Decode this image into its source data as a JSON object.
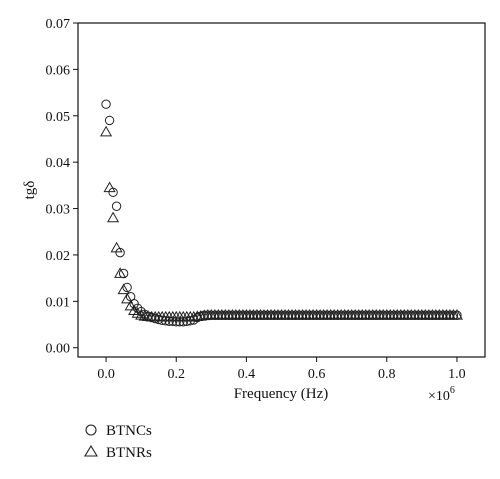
{
  "chart_data": {
    "type": "scatter",
    "title": "",
    "xlabel": "Frequency (Hz)",
    "ylabel": "tgδ",
    "x_multiplier": "×10",
    "x_multiplier_exp": "6",
    "xlim": [
      -0.08,
      1.08
    ],
    "ylim": [
      -0.002,
      0.07
    ],
    "xticks": [
      0.0,
      0.2,
      0.4,
      0.6,
      0.8,
      1.0
    ],
    "xtick_labels": [
      "0.0",
      "0.2",
      "0.4",
      "0.6",
      "0.8",
      "1.0"
    ],
    "yticks": [
      0.0,
      0.01,
      0.02,
      0.03,
      0.04,
      0.05,
      0.06,
      0.07
    ],
    "ytick_labels": [
      "0.00",
      "0.01",
      "0.02",
      "0.03",
      "0.04",
      "0.05",
      "0.06",
      "0.07"
    ],
    "grid": false,
    "legend_position": "bottom-left-outside",
    "series": [
      {
        "name": "BTNCs",
        "marker": "circle",
        "x": [
          0.0,
          0.01,
          0.02,
          0.03,
          0.04,
          0.05,
          0.06,
          0.07,
          0.08,
          0.09,
          0.1,
          0.11,
          0.12,
          0.13,
          0.14,
          0.15,
          0.16,
          0.17,
          0.18,
          0.19,
          0.2,
          0.21,
          0.22,
          0.23,
          0.24,
          0.25,
          0.26,
          0.27,
          0.28,
          0.29,
          0.3,
          0.31,
          0.32,
          0.33,
          0.34,
          0.35,
          0.36,
          0.37,
          0.38,
          0.39,
          0.4,
          0.41,
          0.42,
          0.43,
          0.44,
          0.45,
          0.46,
          0.47,
          0.48,
          0.49,
          0.5,
          0.51,
          0.52,
          0.53,
          0.54,
          0.55,
          0.56,
          0.57,
          0.58,
          0.59,
          0.6,
          0.61,
          0.62,
          0.63,
          0.64,
          0.65,
          0.66,
          0.67,
          0.68,
          0.69,
          0.7,
          0.71,
          0.72,
          0.73,
          0.74,
          0.75,
          0.76,
          0.77,
          0.78,
          0.79,
          0.8,
          0.81,
          0.82,
          0.83,
          0.84,
          0.85,
          0.86,
          0.87,
          0.88,
          0.89,
          0.9,
          0.91,
          0.92,
          0.93,
          0.94,
          0.95,
          0.96,
          0.97,
          0.98,
          0.99,
          1.0
        ],
        "y": [
          0.0525,
          0.049,
          0.0335,
          0.0305,
          0.0205,
          0.016,
          0.013,
          0.011,
          0.0095,
          0.0085,
          0.0078,
          0.0072,
          0.0068,
          0.0065,
          0.0063,
          0.0061,
          0.0059,
          0.0058,
          0.0057,
          0.0057,
          0.0056,
          0.0056,
          0.0056,
          0.0057,
          0.0058,
          0.006,
          0.0065,
          0.0068,
          0.007,
          0.007,
          0.007,
          0.007,
          0.007,
          0.007,
          0.007,
          0.007,
          0.007,
          0.007,
          0.007,
          0.007,
          0.007,
          0.007,
          0.007,
          0.007,
          0.007,
          0.007,
          0.007,
          0.007,
          0.007,
          0.007,
          0.007,
          0.007,
          0.007,
          0.007,
          0.007,
          0.007,
          0.007,
          0.007,
          0.007,
          0.007,
          0.007,
          0.007,
          0.007,
          0.007,
          0.007,
          0.007,
          0.007,
          0.007,
          0.007,
          0.007,
          0.007,
          0.007,
          0.007,
          0.007,
          0.007,
          0.007,
          0.007,
          0.007,
          0.007,
          0.007,
          0.007,
          0.007,
          0.007,
          0.007,
          0.007,
          0.007,
          0.007,
          0.007,
          0.007,
          0.007,
          0.007,
          0.007,
          0.007,
          0.007,
          0.007,
          0.007,
          0.007,
          0.007,
          0.007,
          0.007,
          0.007
        ]
      },
      {
        "name": "BTNRs",
        "marker": "triangle",
        "x": [
          0.0,
          0.01,
          0.02,
          0.03,
          0.04,
          0.05,
          0.06,
          0.07,
          0.08,
          0.09,
          0.1,
          0.11,
          0.12,
          0.13,
          0.14,
          0.15,
          0.16,
          0.17,
          0.18,
          0.19,
          0.2,
          0.21,
          0.22,
          0.23,
          0.24,
          0.25,
          0.26,
          0.27,
          0.28,
          0.29,
          0.3,
          0.31,
          0.32,
          0.33,
          0.34,
          0.35,
          0.36,
          0.37,
          0.38,
          0.39,
          0.4,
          0.41,
          0.42,
          0.43,
          0.44,
          0.45,
          0.46,
          0.47,
          0.48,
          0.49,
          0.5,
          0.51,
          0.52,
          0.53,
          0.54,
          0.55,
          0.56,
          0.57,
          0.58,
          0.59,
          0.6,
          0.61,
          0.62,
          0.63,
          0.64,
          0.65,
          0.66,
          0.67,
          0.68,
          0.69,
          0.7,
          0.71,
          0.72,
          0.73,
          0.74,
          0.75,
          0.76,
          0.77,
          0.78,
          0.79,
          0.8,
          0.81,
          0.82,
          0.83,
          0.84,
          0.85,
          0.86,
          0.87,
          0.88,
          0.89,
          0.9,
          0.91,
          0.92,
          0.93,
          0.94,
          0.95,
          0.96,
          0.97,
          0.98,
          0.99,
          1.0
        ],
        "y": [
          0.0465,
          0.0345,
          0.028,
          0.0215,
          0.016,
          0.0125,
          0.0105,
          0.009,
          0.008,
          0.0074,
          0.007,
          0.0068,
          0.0067,
          0.0066,
          0.0066,
          0.0066,
          0.0066,
          0.0066,
          0.0066,
          0.0066,
          0.0066,
          0.0066,
          0.0066,
          0.0066,
          0.0066,
          0.0066,
          0.0067,
          0.0068,
          0.0069,
          0.007,
          0.007,
          0.007,
          0.007,
          0.007,
          0.007,
          0.007,
          0.007,
          0.007,
          0.007,
          0.007,
          0.007,
          0.007,
          0.007,
          0.007,
          0.007,
          0.007,
          0.007,
          0.007,
          0.007,
          0.007,
          0.007,
          0.007,
          0.007,
          0.007,
          0.007,
          0.007,
          0.007,
          0.007,
          0.007,
          0.007,
          0.007,
          0.007,
          0.007,
          0.007,
          0.007,
          0.007,
          0.007,
          0.007,
          0.007,
          0.007,
          0.007,
          0.007,
          0.007,
          0.007,
          0.007,
          0.007,
          0.007,
          0.007,
          0.007,
          0.007,
          0.007,
          0.007,
          0.007,
          0.007,
          0.007,
          0.007,
          0.007,
          0.007,
          0.007,
          0.007,
          0.007,
          0.007,
          0.007,
          0.007,
          0.007,
          0.007,
          0.007,
          0.007,
          0.007,
          0.007,
          0.007
        ]
      }
    ],
    "colors": {
      "marker_stroke": "#222222",
      "axis": "#111111"
    }
  }
}
